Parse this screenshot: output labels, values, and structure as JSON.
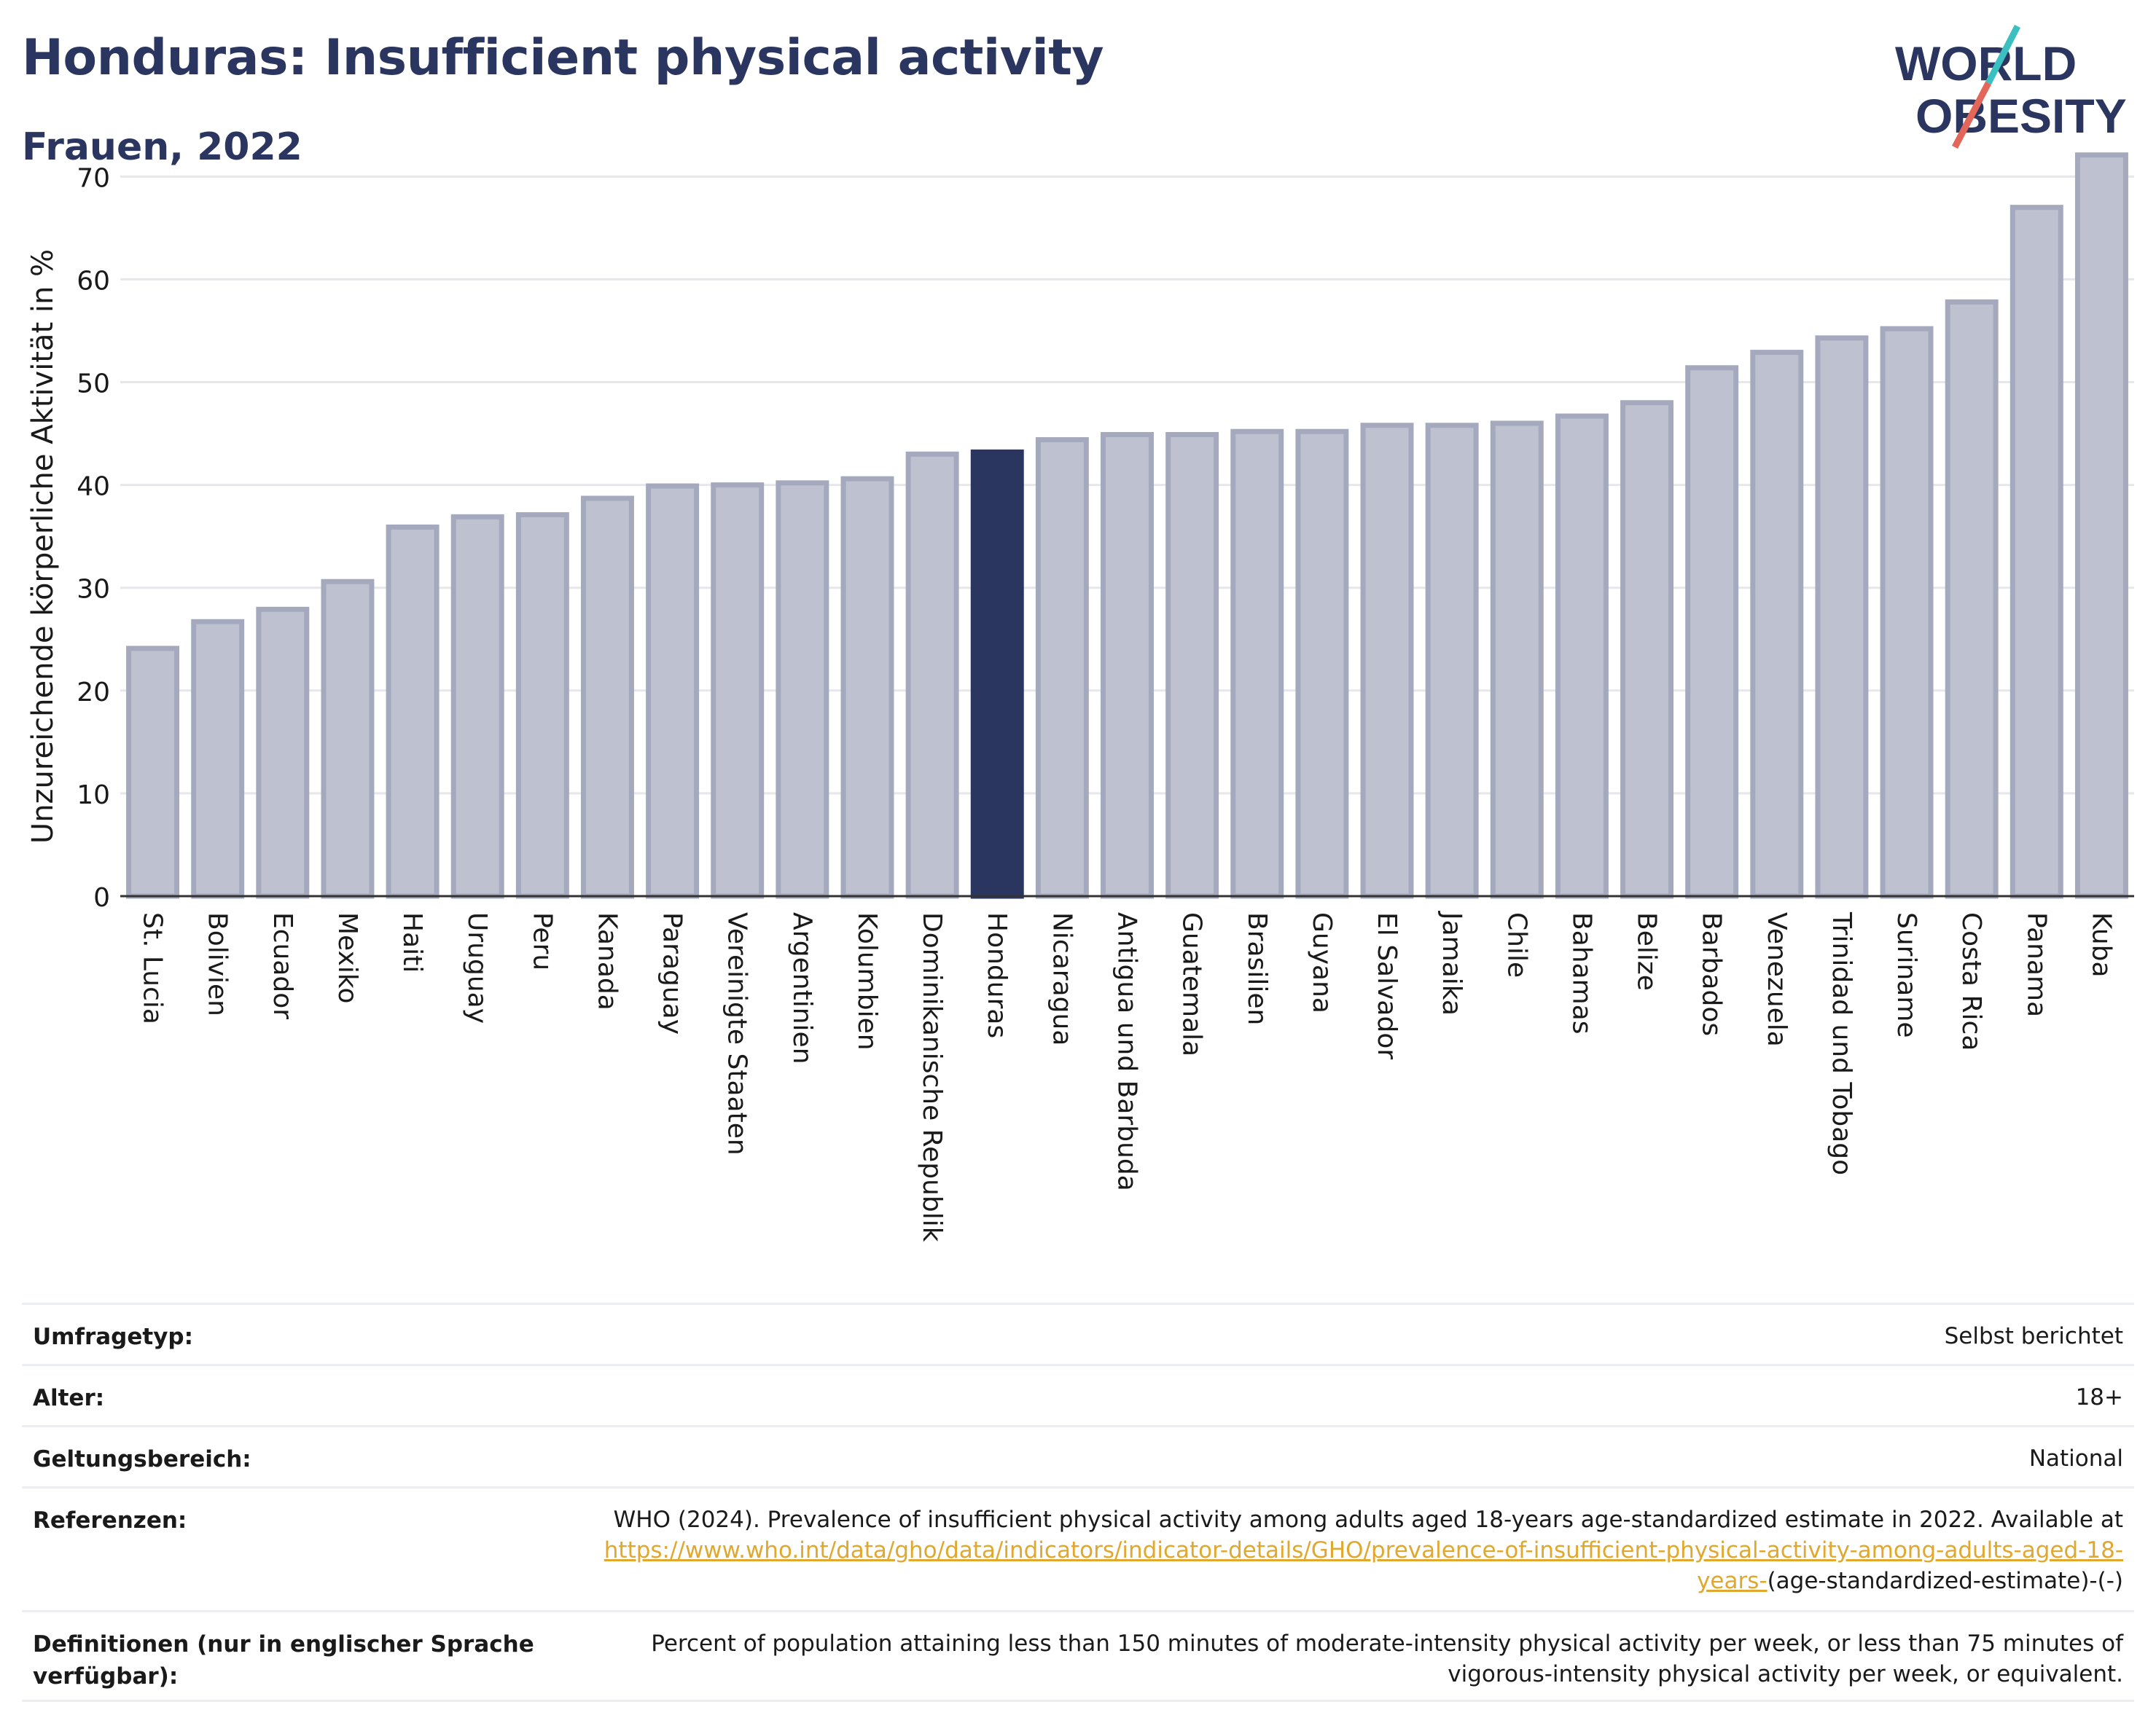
{
  "header": {
    "title": "Honduras: Insufficient physical activity",
    "subtitle": "Frauen, 2022"
  },
  "logo": {
    "line1": "WORLD",
    "line2": "OBESITY",
    "colors": {
      "text": "#2a3560",
      "slash_teal": "#3bbfc0",
      "slash_red": "#e2665a"
    }
  },
  "colors": {
    "bar_default_fill": "#bec1cf",
    "bar_default_stroke": "#a5a9be",
    "bar_highlight": "#2a3560",
    "grid": "#e6e7eb",
    "axis": "#333333"
  },
  "chart_data": {
    "type": "bar",
    "title": "Honduras: Insufficient physical activity",
    "subtitle": "Frauen, 2022",
    "ylabel": "Unzureichende körperliche Aktivität in %",
    "xlabel": "",
    "ylim": [
      0,
      73
    ],
    "yticks": [
      0,
      10,
      20,
      30,
      40,
      50,
      60,
      70
    ],
    "grid": true,
    "highlight": "Honduras",
    "categories": [
      "St. Lucia",
      "Bolivien",
      "Ecuador",
      "Mexiko",
      "Haiti",
      "Uruguay",
      "Peru",
      "Kanada",
      "Paraguay",
      "Vereinigte Staaten",
      "Argentinien",
      "Kolumbien",
      "Dominikanische Republik",
      "Honduras",
      "Nicaragua",
      "Antigua und Barbuda",
      "Guatemala",
      "Brasilien",
      "Guyana",
      "El Salvador",
      "Jamaika",
      "Chile",
      "Bahamas",
      "Belize",
      "Barbados",
      "Venezuela",
      "Trinidad und Tobago",
      "Suriname",
      "Costa Rica",
      "Panama",
      "Kuba"
    ],
    "values": [
      24.1,
      26.7,
      27.9,
      30.6,
      35.9,
      36.9,
      37.1,
      38.7,
      39.9,
      40.0,
      40.2,
      40.6,
      43.0,
      43.2,
      44.4,
      44.9,
      44.9,
      45.2,
      45.2,
      45.8,
      45.8,
      46.0,
      46.7,
      48.0,
      51.4,
      52.9,
      54.3,
      55.2,
      57.8,
      67.0,
      72.1
    ]
  },
  "meta": [
    {
      "label": "Umfragetyp:",
      "value": "Selbst berichtet"
    },
    {
      "label": "Alter:",
      "value": "18+"
    },
    {
      "label": "Geltungsbereich:",
      "value": "National"
    },
    {
      "label": "Referenzen:",
      "value": "WHO (2024). Prevalence of insufficient physical activity among adults aged 18-years age-standardized estimate in 2022. Available at",
      "link": "https://www.who.int/data/gho/data/indicators/indicator-details/GHO/prevalence-of-insufficient-physical-activity-among-adults-aged-18-years-",
      "suffix": "(age-standardized-estimate)-(-)"
    },
    {
      "label": "Definitionen (nur in englischer Sprache verfügbar):",
      "value": "Percent of population attaining less than 150 minutes of moderate-intensity physical activity per week, or less than 75 minutes of vigorous-intensity physical activity per week, or equivalent."
    }
  ]
}
